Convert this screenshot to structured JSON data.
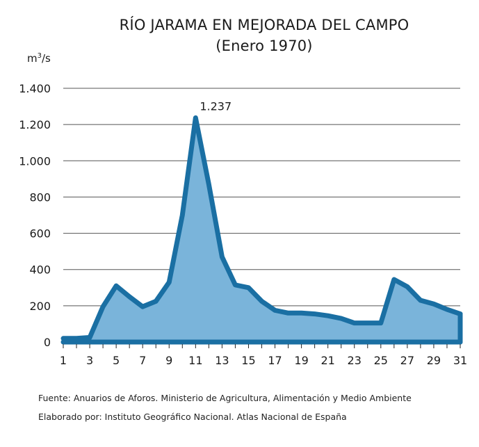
{
  "title": "RÍO JARAMA EN MEJORADA DEL CAMPO",
  "subtitle": "(Enero 1970)",
  "y_unit": "m",
  "y_unit_sup": "3",
  "y_unit_tail": "/s",
  "peak_label": "1.237",
  "source_line": "Fuente: Anuarios de Aforos. Ministerio de Agricultura, Alimentación y Medio Ambiente",
  "credit_line": "Elaborado por: Instituto Geográfico Nacional. Atlas Nacional de España",
  "colors": {
    "fill": "#7ab4da",
    "line": "#1a6fa3",
    "grid": "#555555"
  },
  "chart_data": {
    "type": "area",
    "title": "RÍO JARAMA EN MEJORADA DEL CAMPO",
    "subtitle": "(Enero 1970)",
    "xlabel": "",
    "ylabel": "m3/s",
    "x": [
      1,
      2,
      3,
      4,
      5,
      6,
      7,
      8,
      9,
      10,
      11,
      12,
      13,
      14,
      15,
      16,
      17,
      18,
      19,
      20,
      21,
      22,
      23,
      24,
      25,
      26,
      27,
      28,
      29,
      30,
      31
    ],
    "values": [
      20,
      20,
      25,
      195,
      310,
      250,
      195,
      225,
      330,
      700,
      1237,
      870,
      470,
      315,
      300,
      225,
      175,
      160,
      160,
      155,
      145,
      130,
      105,
      105,
      105,
      345,
      305,
      230,
      210,
      180,
      155
    ],
    "ylim": [
      0,
      1400
    ],
    "y_ticks": [
      0,
      200,
      400,
      600,
      800,
      1000,
      1200,
      1400
    ],
    "y_tick_labels": [
      "0",
      "200",
      "400",
      "600",
      "800",
      "1.000",
      "1.200",
      "1.400"
    ],
    "x_tick_labels": [
      "1",
      "3",
      "5",
      "7",
      "9",
      "11",
      "13",
      "15",
      "17",
      "19",
      "21",
      "23",
      "25",
      "27",
      "29",
      "31"
    ],
    "x_tick_values": [
      1,
      3,
      5,
      7,
      9,
      11,
      13,
      15,
      17,
      19,
      21,
      23,
      25,
      27,
      29,
      31
    ],
    "annotations": [
      {
        "x": 11,
        "y": 1237,
        "text": "1.237"
      }
    ],
    "grid": "horizontal"
  }
}
